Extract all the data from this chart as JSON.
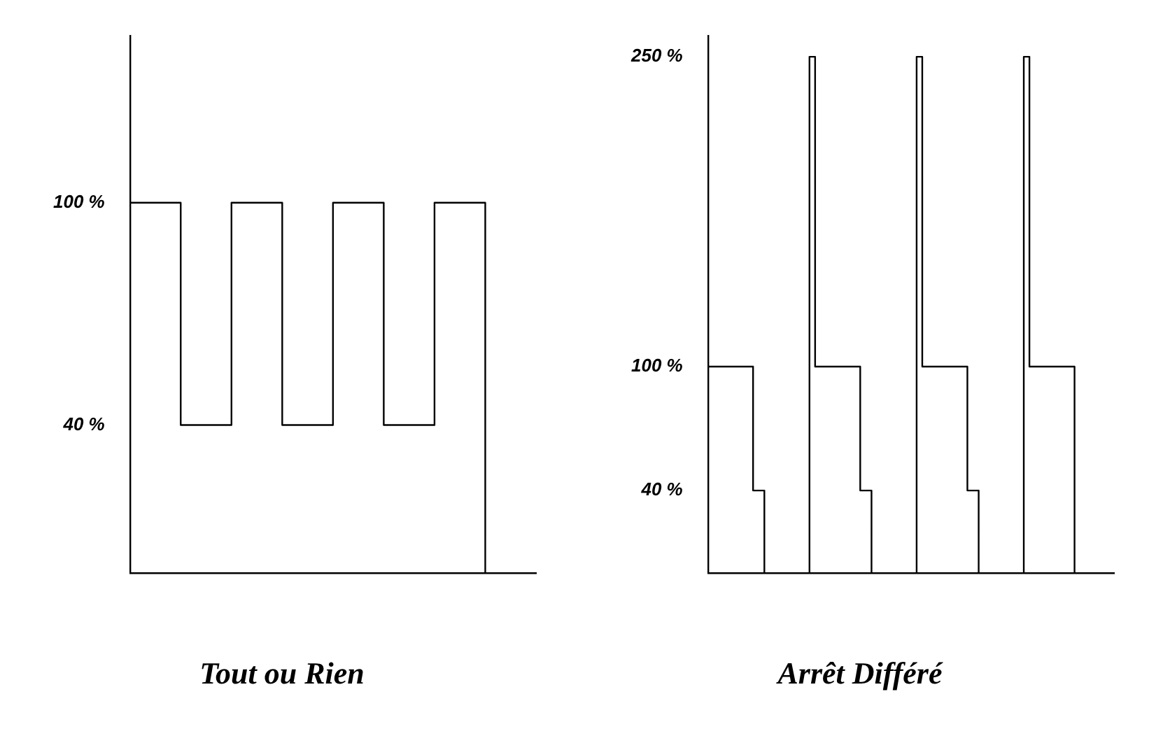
{
  "chart_data": [
    {
      "type": "step",
      "title": "Tout ou Rien",
      "categories": [
        null,
        null,
        null,
        null,
        null,
        null,
        null,
        null,
        null
      ],
      "series": [
        {
          "color": "#000000",
          "values": [
            100,
            40,
            100,
            40,
            100,
            40,
            100,
            0,
            0
          ]
        }
      ],
      "ylim": [
        0,
        145
      ],
      "yticks": [
        {
          "value": 40,
          "label": "40 %"
        },
        {
          "value": 100,
          "label": "100 %"
        }
      ],
      "grid": false,
      "tick_labels": "y",
      "marker": "none"
    },
    {
      "type": "step",
      "title": "Arrêt Différé",
      "categories": [
        null,
        null,
        null,
        null,
        null,
        null,
        null,
        null,
        null,
        null,
        null,
        null,
        null,
        null,
        null,
        null,
        null,
        null,
        null,
        null,
        null,
        null,
        null,
        null,
        null,
        null,
        null,
        null,
        null,
        null,
        null,
        null,
        null,
        null,
        null,
        null,
        null,
        null,
        null,
        null,
        null,
        null,
        null,
        null,
        null,
        null,
        null,
        null,
        null,
        null,
        null,
        null,
        null,
        null,
        null,
        null,
        null,
        null,
        null,
        null,
        null,
        null,
        null,
        null,
        null,
        null,
        null,
        null,
        null,
        null,
        null,
        null,
        null
      ],
      "series": [
        {
          "color": "#000000",
          "values": [
            100,
            100,
            100,
            100,
            100,
            100,
            100,
            100,
            40,
            40,
            0,
            0,
            0,
            0,
            0,
            0,
            0,
            0,
            250,
            100,
            100,
            100,
            100,
            100,
            100,
            100,
            100,
            40,
            40,
            0,
            0,
            0,
            0,
            0,
            0,
            0,
            0,
            250,
            100,
            100,
            100,
            100,
            100,
            100,
            100,
            100,
            40,
            40,
            0,
            0,
            0,
            0,
            0,
            0,
            0,
            0,
            250,
            100,
            100,
            100,
            100,
            100,
            100,
            100,
            100,
            0,
            0,
            0,
            0,
            0,
            0,
            0,
            0
          ]
        }
      ],
      "ylim": [
        0,
        260
      ],
      "yticks": [
        {
          "value": 40,
          "label": "40 %"
        },
        {
          "value": 100,
          "label": "100 %"
        },
        {
          "value": 250,
          "label": "250 %"
        }
      ],
      "grid": false,
      "tick_labels": "y",
      "marker": "none"
    }
  ]
}
